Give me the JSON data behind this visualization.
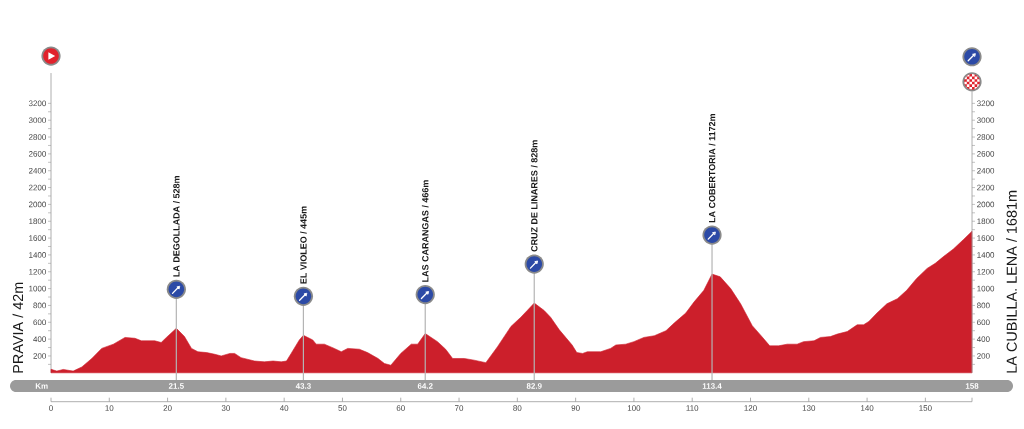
{
  "chart_data": {
    "type": "area",
    "ylabel": "PRAVIA / 42m",
    "y2label": "LA CUBILLA. LENA / 1681m",
    "x2label": "Km",
    "color": "#cc1f2b",
    "x": [
      0,
      1,
      2.1,
      3.8,
      5.3,
      7,
      8.7,
      10.7,
      12.7,
      14.4,
      15.5,
      17.8,
      18.9,
      19.8,
      21.5,
      22.9,
      24.1,
      25.2,
      26.7,
      28.1,
      29.2,
      30.7,
      31.5,
      32.6,
      34.9,
      36.6,
      38.1,
      39.5,
      40.4,
      41.2,
      42.6,
      43.3,
      44.9,
      45.5,
      46.9,
      48.6,
      49.8,
      50.9,
      52.9,
      54.3,
      56.1,
      57.2,
      58.3,
      60,
      61.8,
      62.9,
      64.2,
      66.3,
      67.7,
      68.9,
      70.9,
      72.6,
      74.6,
      76.6,
      78.9,
      80.6,
      81.7,
      82.9,
      84.6,
      85.7,
      87.2,
      89.4,
      90.2,
      91.2,
      92,
      94.3,
      96,
      96.9,
      98.6,
      100,
      101.7,
      103.5,
      105.5,
      106.9,
      108.9,
      110.3,
      112,
      113.4,
      114.8,
      116.6,
      118.3,
      120.3,
      121.7,
      123.3,
      124.8,
      126.3,
      128,
      129.1,
      130.9,
      132,
      133.7,
      134.9,
      136.6,
      138.3,
      139.4,
      140.3,
      141.7,
      143.4,
      145.2,
      146.8,
      148.5,
      150.3,
      151.7,
      153.1,
      154.8,
      156.5,
      158
    ],
    "values": [
      42,
      20,
      40,
      20,
      70,
      170,
      290,
      340,
      420,
      410,
      380,
      380,
      360,
      420,
      528,
      430,
      290,
      250,
      240,
      220,
      200,
      230,
      230,
      180,
      140,
      130,
      140,
      130,
      140,
      230,
      390,
      445,
      390,
      340,
      340,
      290,
      250,
      290,
      280,
      240,
      170,
      110,
      90,
      230,
      340,
      340,
      466,
      370,
      280,
      170,
      170,
      150,
      120,
      310,
      550,
      660,
      740,
      828,
      740,
      660,
      510,
      330,
      240,
      230,
      250,
      250,
      290,
      330,
      340,
      370,
      420,
      440,
      500,
      590,
      710,
      840,
      980,
      1172,
      1140,
      1000,
      820,
      560,
      450,
      320,
      320,
      340,
      340,
      370,
      380,
      420,
      430,
      460,
      490,
      570,
      570,
      610,
      710,
      820,
      880,
      980,
      1120,
      1240,
      1300,
      1380,
      1470,
      1580,
      1681
    ],
    "xlim": [
      0,
      158
    ],
    "xticks": [
      0,
      10,
      20,
      30,
      40,
      50,
      60,
      70,
      80,
      90,
      100,
      110,
      120,
      130,
      140,
      150,
      {
        "value": 158,
        "label": null
      }
    ],
    "ylim": [
      0,
      3560
    ],
    "yticks": [
      {
        "value": 100,
        "label": null
      },
      200,
      {
        "value": 300,
        "label": null
      },
      400,
      {
        "value": 500,
        "label": null
      },
      600,
      {
        "value": 700,
        "label": null
      },
      800,
      {
        "value": 900,
        "label": null
      },
      1000,
      {
        "value": 1100,
        "label": null
      },
      1200,
      {
        "value": 1300,
        "label": null
      },
      1400,
      {
        "value": 1500,
        "label": null
      },
      1600,
      {
        "value": 1700,
        "label": null
      },
      1800,
      {
        "value": 1900,
        "label": null
      },
      2000,
      {
        "value": 2100,
        "label": null
      },
      2200,
      {
        "value": 2300,
        "label": null
      },
      2400,
      {
        "value": 2500,
        "label": null
      },
      2600,
      {
        "value": 2700,
        "label": null
      },
      2800,
      {
        "value": 2900,
        "label": null
      },
      3000,
      {
        "value": 3100,
        "label": null
      },
      3200
    ],
    "y2lim": [
      0,
      3560
    ],
    "y2ticks": [
      {
        "value": 100,
        "label": null
      },
      200,
      {
        "value": 300,
        "label": null
      },
      400,
      {
        "value": 500,
        "label": null
      },
      600,
      {
        "value": 700,
        "label": null
      },
      800,
      {
        "value": 900,
        "label": null
      },
      1000,
      {
        "value": 1100,
        "label": null
      },
      1200,
      {
        "value": 1300,
        "label": null
      },
      1400,
      {
        "value": 1500,
        "label": null
      },
      1600,
      {
        "value": 1700,
        "label": null
      },
      1800,
      {
        "value": 1900,
        "label": null
      },
      2000,
      {
        "value": 2100,
        "label": null
      },
      2200,
      {
        "value": 2300,
        "label": null
      },
      2400,
      {
        "value": 2500,
        "label": null
      },
      2600,
      {
        "value": 2700,
        "label": null
      },
      2800,
      {
        "value": 2900,
        "label": null
      },
      3000,
      {
        "value": 3100,
        "label": null
      },
      3200
    ],
    "x2lim": [
      0,
      158
    ],
    "x2ticks": [
      21.5,
      43.3,
      64.2,
      82.9,
      113.4,
      158
    ],
    "ref_lines": [
      {
        "axis": "x",
        "value": 21.5,
        "label": "LA DEGOLLADA / 528m",
        "color": "#b4b4b4"
      },
      {
        "axis": "x",
        "value": 43.3,
        "label": "EL VIOLEO / 445m",
        "color": "#b4b4b4"
      },
      {
        "axis": "x",
        "value": 64.2,
        "label": "LAS CARANGAS / 466m",
        "color": "#b4b4b4"
      },
      {
        "axis": "x",
        "value": 82.9,
        "label": "CRUZ DE LINARES / 828m",
        "color": "#b4b4b4"
      },
      {
        "axis": "x",
        "value": 113.4,
        "label": "LA COBERTORIA / 1172m",
        "color": "#b4b4b4"
      }
    ]
  }
}
